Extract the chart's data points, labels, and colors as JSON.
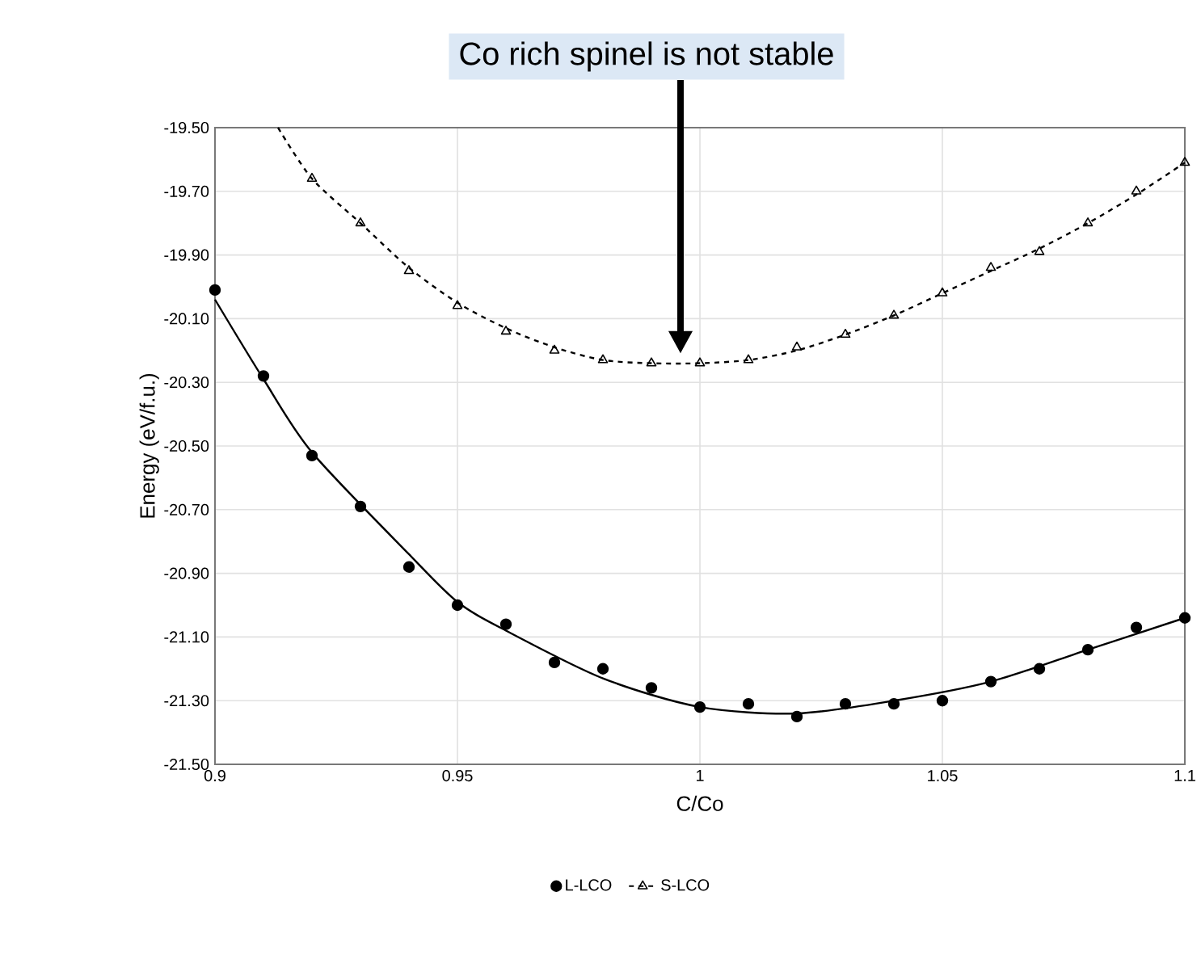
{
  "chart_data": {
    "type": "scatter",
    "xlabel": "C/Co",
    "ylabel": "Energy (eV/f.u.)",
    "xlim": [
      0.9,
      1.1
    ],
    "ylim": [
      -21.5,
      -19.5
    ],
    "xticks": [
      0.9,
      0.95,
      1,
      1.05,
      1.1
    ],
    "yticks": [
      {
        "value": -19.5,
        "label": "-19.50"
      },
      {
        "value": -19.7,
        "label": "-19.70"
      },
      {
        "value": -19.9,
        "label": "-19.90"
      },
      {
        "value": -20.1,
        "label": "-20.10"
      },
      {
        "value": -20.3,
        "label": "-20.30"
      },
      {
        "value": -20.5,
        "label": "-20.50"
      },
      {
        "value": -20.7,
        "label": "-20.70"
      },
      {
        "value": -20.9,
        "label": "-20.90"
      },
      {
        "value": -21.1,
        "label": "-21.10"
      },
      {
        "value": -21.3,
        "label": "-21.30"
      },
      {
        "value": -21.5,
        "label": "-21.50"
      }
    ],
    "grid": true,
    "legend": "bottom",
    "annotations": [
      "Co rich spinel is not stable"
    ],
    "series": [
      {
        "name": "L-LCO",
        "marker": "circle",
        "color": "#000000",
        "x": [
          0.9,
          0.91,
          0.92,
          0.93,
          0.94,
          0.95,
          0.96,
          0.97,
          0.98,
          0.99,
          1.0,
          1.01,
          1.02,
          1.03,
          1.04,
          1.05,
          1.06,
          1.07,
          1.08,
          1.09,
          1.1
        ],
        "values": [
          -20.01,
          -20.28,
          -20.53,
          -20.69,
          -20.88,
          -21.0,
          -21.06,
          -21.18,
          -21.2,
          -21.26,
          -21.32,
          -21.31,
          -21.35,
          -21.31,
          -21.31,
          -21.3,
          -21.24,
          -21.2,
          -21.14,
          -21.07,
          -21.04
        ]
      },
      {
        "type": "line",
        "line_style": "solid",
        "color": "#000000",
        "x": [
          0.9,
          0.91,
          0.92,
          0.94,
          0.95,
          0.96,
          0.98,
          1.0,
          1.02,
          1.04,
          1.06,
          1.08,
          1.1
        ],
        "values": [
          -20.04,
          -20.29,
          -20.52,
          -20.84,
          -20.99,
          -21.08,
          -21.23,
          -21.32,
          -21.34,
          -21.3,
          -21.24,
          -21.14,
          -21.04
        ]
      },
      {
        "name": "S-LCO",
        "marker": "triangle",
        "line_style": "dashed",
        "color": "#000000",
        "x": [
          0.92,
          0.93,
          0.94,
          0.95,
          0.96,
          0.97,
          0.98,
          0.99,
          1.0,
          1.01,
          1.02,
          1.03,
          1.04,
          1.05,
          1.06,
          1.07,
          1.08,
          1.09,
          1.1
        ],
        "values": [
          -19.66,
          -19.8,
          -19.95,
          -20.06,
          -20.14,
          -20.2,
          -20.23,
          -20.24,
          -20.24,
          -20.23,
          -20.19,
          -20.15,
          -20.09,
          -20.02,
          -19.94,
          -19.89,
          -19.8,
          -19.7,
          -19.61
        ]
      },
      {
        "type": "line",
        "line_style": "dashed",
        "color": "#000000",
        "x": [
          0.913,
          0.92,
          0.93,
          0.94,
          0.95,
          0.96,
          0.97,
          0.98,
          0.99,
          1.0,
          1.01,
          1.02,
          1.03,
          1.04,
          1.05,
          1.06,
          1.07,
          1.08,
          1.09,
          1.1
        ],
        "values": [
          -19.5,
          -19.66,
          -19.8,
          -19.94,
          -20.05,
          -20.13,
          -20.19,
          -20.23,
          -20.24,
          -20.24,
          -20.23,
          -20.2,
          -20.15,
          -20.09,
          -20.02,
          -19.95,
          -19.88,
          -19.8,
          -19.71,
          -19.61
        ]
      }
    ]
  }
}
